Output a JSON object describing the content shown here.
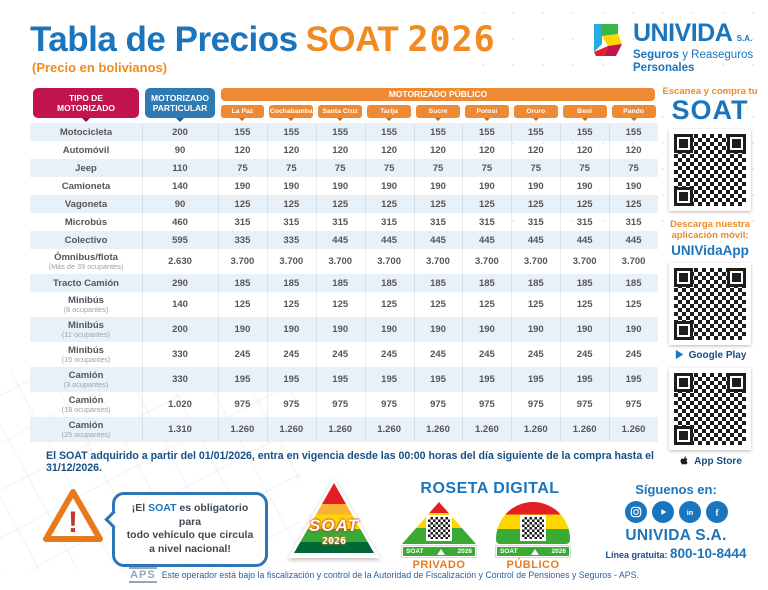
{
  "header": {
    "title_main": "Tabla de Precios",
    "title_soat": "SOAT",
    "title_year": "2026",
    "subtitle": "(Precio en bolivianos)",
    "brand": {
      "name": "UNIVIDA",
      "sa": "S.A.",
      "sub_bold": "Seguros",
      "sub_rest": " y Reaseguros",
      "sub_line2": "Personales"
    }
  },
  "colors": {
    "blue": "#1B75BC",
    "orange": "#F08A21",
    "crimson": "#C1134E",
    "header_blue": "#2E7BB4",
    "chip_orange": "#EE8A33",
    "stripe_blue": "#E8F1F8",
    "note_blue": "#174F85",
    "flag_red": "#E31E24",
    "flag_yellow": "#FFD500",
    "flag_green": "#3AAA35"
  },
  "table": {
    "col_type_line1": "TIPO DE",
    "col_type_line2": "MOTORIZADO",
    "col_particular_line1": "MOTORIZADO",
    "col_particular_line2": "PARTICULAR",
    "col_publico": "MOTORIZADO PÚBLICO",
    "cities": [
      "La Paz",
      "Cochabamba",
      "Santa Cruz",
      "Tarija",
      "Sucre",
      "Potosí",
      "Oruro",
      "Beni",
      "Pando"
    ],
    "rows": [
      {
        "label": "Motocicleta",
        "sub": "",
        "particular": "200",
        "publico": [
          "155",
          "155",
          "155",
          "155",
          "155",
          "155",
          "155",
          "155",
          "155"
        ]
      },
      {
        "label": "Automóvil",
        "sub": "",
        "particular": "90",
        "publico": [
          "120",
          "120",
          "120",
          "120",
          "120",
          "120",
          "120",
          "120",
          "120"
        ]
      },
      {
        "label": "Jeep",
        "sub": "",
        "particular": "110",
        "publico": [
          "75",
          "75",
          "75",
          "75",
          "75",
          "75",
          "75",
          "75",
          "75"
        ]
      },
      {
        "label": "Camioneta",
        "sub": "",
        "particular": "140",
        "publico": [
          "190",
          "190",
          "190",
          "190",
          "190",
          "190",
          "190",
          "190",
          "190"
        ]
      },
      {
        "label": "Vagoneta",
        "sub": "",
        "particular": "90",
        "publico": [
          "125",
          "125",
          "125",
          "125",
          "125",
          "125",
          "125",
          "125",
          "125"
        ]
      },
      {
        "label": "Microbús",
        "sub": "",
        "particular": "460",
        "publico": [
          "315",
          "315",
          "315",
          "315",
          "315",
          "315",
          "315",
          "315",
          "315"
        ]
      },
      {
        "label": "Colectivo",
        "sub": "",
        "particular": "595",
        "publico": [
          "335",
          "335",
          "445",
          "445",
          "445",
          "445",
          "445",
          "445",
          "445"
        ]
      },
      {
        "label": "Ómnibus/flota",
        "sub": "(Más de 39 ocupantes)",
        "particular": "2.630",
        "publico": [
          "3.700",
          "3.700",
          "3.700",
          "3.700",
          "3.700",
          "3.700",
          "3.700",
          "3.700",
          "3.700"
        ]
      },
      {
        "label": "Tracto Camión",
        "sub": "",
        "particular": "290",
        "publico": [
          "185",
          "185",
          "185",
          "185",
          "185",
          "185",
          "185",
          "185",
          "185"
        ]
      },
      {
        "label": "Minibús",
        "sub": "(8 ocupantes)",
        "particular": "140",
        "publico": [
          "125",
          "125",
          "125",
          "125",
          "125",
          "125",
          "125",
          "125",
          "125"
        ]
      },
      {
        "label": "Minibús",
        "sub": "(11 ocupantes)",
        "particular": "200",
        "publico": [
          "190",
          "190",
          "190",
          "190",
          "190",
          "190",
          "190",
          "190",
          "190"
        ]
      },
      {
        "label": "Minibús",
        "sub": "(15 ocupantes)",
        "particular": "330",
        "publico": [
          "245",
          "245",
          "245",
          "245",
          "245",
          "245",
          "245",
          "245",
          "245"
        ]
      },
      {
        "label": "Camión",
        "sub": "(3 ocupantes)",
        "particular": "330",
        "publico": [
          "195",
          "195",
          "195",
          "195",
          "195",
          "195",
          "195",
          "195",
          "195"
        ]
      },
      {
        "label": "Camión",
        "sub": "(18 ocupantes)",
        "particular": "1.020",
        "publico": [
          "975",
          "975",
          "975",
          "975",
          "975",
          "975",
          "975",
          "975",
          "975"
        ]
      },
      {
        "label": "Camión",
        "sub": "(25 ocupantes)",
        "particular": "1.310",
        "publico": [
          "1.260",
          "1.260",
          "1.260",
          "1.260",
          "1.260",
          "1.260",
          "1.260",
          "1.260",
          "1.260"
        ]
      }
    ]
  },
  "note": "El SOAT adquirido a partir del 01/01/2026, entra en vigencia desde las 00:00 horas del día siguiente de la compra hasta el 31/12/2026.",
  "sidebar": {
    "scan_title": "Escanea y compra tu",
    "scan_soat": "SOAT",
    "download_line1": "Descarga nuestra",
    "download_line2": "aplicación móvil:",
    "app_name": "UNIVidaApp",
    "google_play": "Google Play",
    "app_store": "App Store"
  },
  "warning": {
    "line1_pre": "¡El ",
    "line1_bold": "SOAT",
    "line1_post": " es obligatorio para",
    "line2": "todo vehículo que circula",
    "line3": "a nivel nacional!"
  },
  "soat_badge": {
    "line1": "SOAT",
    "line2": "2026"
  },
  "roseta": {
    "title": "ROSETA DIGITAL",
    "items": [
      {
        "strip_left": "SOAT",
        "strip_right": "2026",
        "label": "PRIVADO"
      },
      {
        "strip_left": "SOAT",
        "strip_right": "2026",
        "label": "PÚBLICO"
      }
    ]
  },
  "social": {
    "title": "Síguenos en:",
    "icons": [
      "instagram",
      "youtube",
      "linkedin",
      "facebook"
    ],
    "company": "UNIVIDA S.A.",
    "phone_label": "Línea gratuita: ",
    "phone": "800-10-8444"
  },
  "footer": {
    "aps": "APS",
    "text": "Este operador está bajo la fiscalización y control de la Autoridad de Fiscalización y Control de Pensiones y Seguros - APS."
  }
}
